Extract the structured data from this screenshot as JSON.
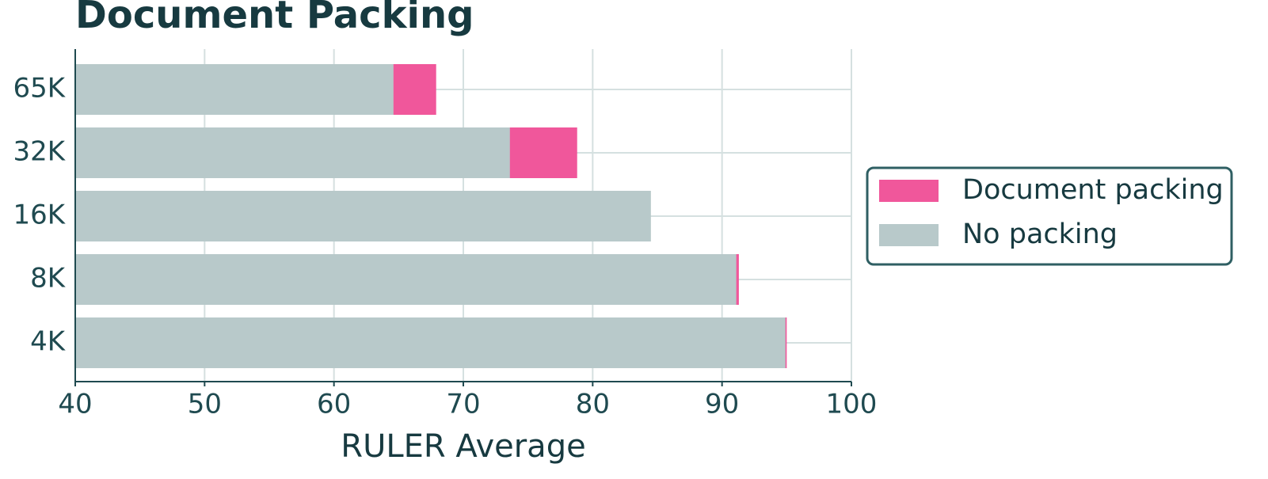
{
  "chart_data": {
    "type": "bar",
    "orientation": "horizontal",
    "title": "Document Packing",
    "categories": [
      "65K",
      "32K",
      "16K",
      "8K",
      "4K"
    ],
    "series": [
      {
        "name": "Document packing",
        "color": "#f0579b",
        "values": [
          67.9,
          78.8,
          84.0,
          91.3,
          95.0
        ]
      },
      {
        "name": "No packing",
        "color": "#b8c9ca",
        "values": [
          64.6,
          73.6,
          84.5,
          91.1,
          94.9
        ]
      }
    ],
    "xlabel": "RULER Average",
    "xlim": [
      40,
      100
    ],
    "xticks": [
      40,
      50,
      60,
      70,
      80,
      90,
      100
    ],
    "grid": true,
    "legend": "right"
  }
}
